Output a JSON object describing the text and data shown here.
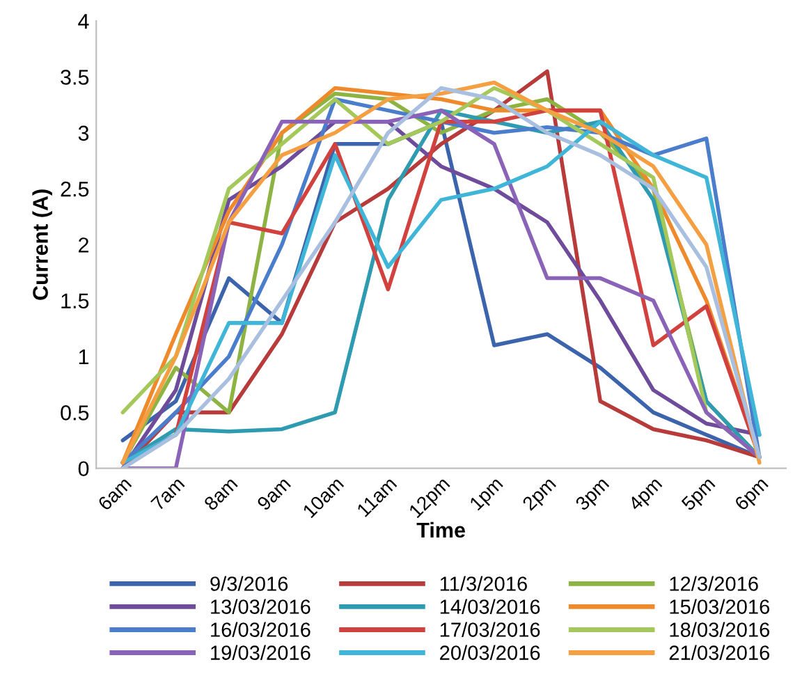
{
  "chart_data": {
    "type": "line",
    "xlabel": "Time",
    "ylabel": "Current (A)",
    "categories": [
      "6am",
      "7am",
      "8am",
      "9am",
      "10am",
      "11am",
      "12pm",
      "1pm",
      "2pm",
      "3pm",
      "4pm",
      "5pm",
      "6pm"
    ],
    "ylim": [
      0,
      4
    ],
    "yticks": [
      0,
      0.5,
      1,
      1.5,
      2,
      2.5,
      3,
      3.5,
      4
    ],
    "grid": false,
    "legend": "bottom",
    "marker": "none",
    "line_style": "solid",
    "series": [
      {
        "name": "9/3/2016",
        "color": "#3b64ad",
        "values": [
          0.25,
          0.6,
          1.7,
          1.3,
          2.9,
          2.9,
          3.1,
          1.1,
          1.2,
          0.9,
          0.5,
          0.3,
          0.1
        ]
      },
      {
        "name": "11/3/2016",
        "color": "#b83b3b",
        "values": [
          0.0,
          0.5,
          0.5,
          1.2,
          2.2,
          2.5,
          2.9,
          3.2,
          3.55,
          0.6,
          0.35,
          0.25,
          0.1
        ]
      },
      {
        "name": "12/3/2016",
        "color": "#8db443",
        "values": [
          0.05,
          0.9,
          0.5,
          3.0,
          3.35,
          3.3,
          3.0,
          3.2,
          3.3,
          3.0,
          2.5,
          0.6,
          0.1
        ]
      },
      {
        "name": "13/03/2016",
        "color": "#6f4c9b",
        "values": [
          0.0,
          0.7,
          2.4,
          2.7,
          3.1,
          3.1,
          2.7,
          2.5,
          2.2,
          1.5,
          0.7,
          0.4,
          0.3
        ]
      },
      {
        "name": "14/03/2016",
        "color": "#2f9bb0",
        "values": [
          0.05,
          0.35,
          0.33,
          0.35,
          0.5,
          2.4,
          3.2,
          3.1,
          3.0,
          3.1,
          2.4,
          0.6,
          0.1
        ]
      },
      {
        "name": "15/03/2016",
        "color": "#ef8a2c",
        "values": [
          0.05,
          1.2,
          2.3,
          3.0,
          3.4,
          3.35,
          3.3,
          3.2,
          3.2,
          3.2,
          2.5,
          1.5,
          0.1
        ]
      },
      {
        "name": "16/03/2016",
        "color": "#4a7dcb",
        "values": [
          0.05,
          0.5,
          1.0,
          2.0,
          3.3,
          3.2,
          3.1,
          3.0,
          3.05,
          3.0,
          2.8,
          2.95,
          0.1
        ]
      },
      {
        "name": "17/03/2016",
        "color": "#d1423f",
        "values": [
          0.05,
          0.3,
          2.2,
          2.1,
          2.9,
          1.6,
          3.1,
          3.1,
          3.2,
          3.2,
          1.1,
          1.45,
          0.1
        ]
      },
      {
        "name": "18/03/2016",
        "color": "#a5c85a",
        "values": [
          0.5,
          1.0,
          2.5,
          2.9,
          3.3,
          2.9,
          3.1,
          3.4,
          3.2,
          2.9,
          2.6,
          0.5,
          0.1
        ]
      },
      {
        "name": "19/03/2016",
        "color": "#8a63b8",
        "values": [
          0.0,
          0.0,
          2.2,
          3.1,
          3.1,
          3.1,
          3.2,
          2.9,
          1.7,
          1.7,
          1.5,
          0.5,
          0.1
        ]
      },
      {
        "name": "20/03/2016",
        "color": "#3fb5d8",
        "values": [
          0.05,
          0.3,
          1.3,
          1.3,
          2.8,
          1.8,
          2.4,
          2.5,
          2.7,
          3.1,
          2.8,
          2.6,
          0.3
        ]
      },
      {
        "name": "21/03/2016",
        "color": "#f59f43",
        "values": [
          0.05,
          1.0,
          2.2,
          2.8,
          3.0,
          3.3,
          3.35,
          3.45,
          3.2,
          3.0,
          2.7,
          2.0,
          0.05
        ]
      },
      {
        "color": "#a8bfe0",
        "values": [
          0.0,
          0.3,
          0.8,
          1.5,
          2.2,
          3.0,
          3.4,
          3.3,
          3.0,
          2.8,
          2.5,
          1.8,
          0.1
        ]
      }
    ]
  }
}
